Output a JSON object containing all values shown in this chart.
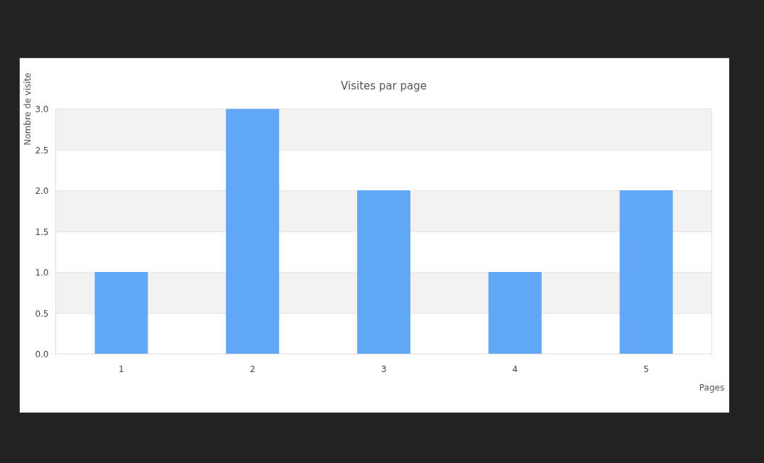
{
  "chart_data": {
    "type": "bar",
    "title": "Visites par page",
    "xlabel": "Pages",
    "ylabel": "Nombre de visite",
    "categories": [
      "1",
      "2",
      "3",
      "4",
      "5"
    ],
    "values": [
      1,
      3,
      2,
      1,
      2
    ],
    "color": "#60a8f5",
    "ylim": [
      0,
      3
    ],
    "yticks": [
      {
        "value": 0,
        "label": "0.0"
      },
      0.5,
      {
        "value": 1,
        "label": "1.0"
      },
      1.5,
      {
        "value": 2,
        "label": "2.0"
      },
      2.5,
      {
        "value": 3,
        "label": "3.0"
      }
    ],
    "grid": "y"
  }
}
